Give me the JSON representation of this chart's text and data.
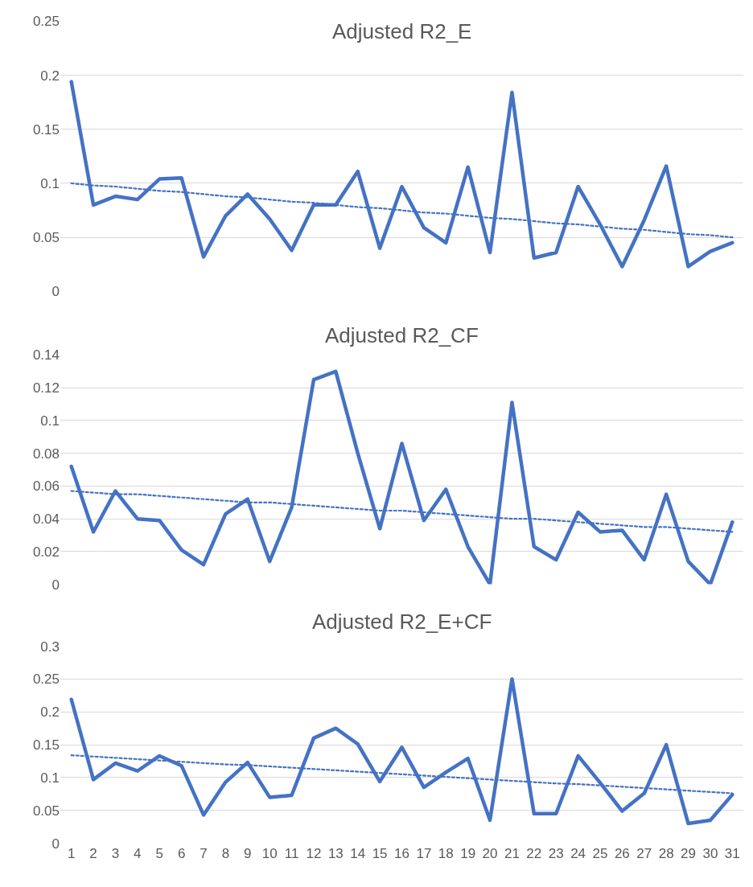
{
  "chart_data": [
    {
      "type": "line",
      "title": "Adjusted R2_E",
      "x": [
        1,
        2,
        3,
        4,
        5,
        6,
        7,
        8,
        9,
        10,
        11,
        12,
        13,
        14,
        15,
        16,
        17,
        18,
        19,
        20,
        21,
        22,
        23,
        24,
        25,
        26,
        27,
        28,
        29,
        30,
        31
      ],
      "xlim": [
        0.5,
        31.5
      ],
      "xticks": [
        1,
        2,
        3,
        4,
        5,
        6,
        7,
        8,
        9,
        10,
        11,
        12,
        13,
        14,
        15,
        16,
        17,
        18,
        19,
        20,
        21,
        22,
        23,
        24,
        25,
        26,
        27,
        28,
        29,
        30,
        31
      ],
      "tick_labels": "y",
      "ylim": [
        0,
        0.25
      ],
      "yticks": [
        0,
        0.05,
        0.1,
        0.15,
        0.2,
        0.25
      ],
      "grid": "y",
      "series": [
        {
          "color": "#4472c4",
          "line_style": "solid",
          "values": [
            0.194,
            0.08,
            0.088,
            0.085,
            0.104,
            0.105,
            0.032,
            0.07,
            0.09,
            0.067,
            0.038,
            0.08,
            0.08,
            0.111,
            0.04,
            0.097,
            0.059,
            0.045,
            0.115,
            0.036,
            0.184,
            0.031,
            0.036,
            0.097,
            0.062,
            0.023,
            0.066,
            0.116,
            0.023,
            0.037,
            0.045
          ]
        },
        {
          "type": "line",
          "color": "#4472c4",
          "line_style": "dotted",
          "values": [
            0.1,
            0.098,
            0.097,
            0.095,
            0.093,
            0.092,
            0.09,
            0.088,
            0.087,
            0.085,
            0.083,
            0.082,
            0.08,
            0.078,
            0.077,
            0.075,
            0.073,
            0.072,
            0.07,
            0.068,
            0.067,
            0.065,
            0.063,
            0.062,
            0.06,
            0.058,
            0.057,
            0.055,
            0.053,
            0.052,
            0.05
          ]
        }
      ]
    },
    {
      "type": "line",
      "title": "Adjusted R2_CF",
      "x": [
        1,
        2,
        3,
        4,
        5,
        6,
        7,
        8,
        9,
        10,
        11,
        12,
        13,
        14,
        15,
        16,
        17,
        18,
        19,
        20,
        21,
        22,
        23,
        24,
        25,
        26,
        27,
        28,
        29,
        30,
        31
      ],
      "xlim": [
        0.5,
        31.5
      ],
      "xticks": [
        1,
        2,
        3,
        4,
        5,
        6,
        7,
        8,
        9,
        10,
        11,
        12,
        13,
        14,
        15,
        16,
        17,
        18,
        19,
        20,
        21,
        22,
        23,
        24,
        25,
        26,
        27,
        28,
        29,
        30,
        31
      ],
      "tick_labels": "y",
      "ylim": [
        0,
        0.14
      ],
      "yticks": [
        0,
        0.02,
        0.04,
        0.06,
        0.08,
        0.1,
        0.12,
        0.14
      ],
      "grid": "y",
      "series": [
        {
          "color": "#4472c4",
          "line_style": "solid",
          "values": [
            0.072,
            0.032,
            0.057,
            0.04,
            0.039,
            0.021,
            0.012,
            0.043,
            0.052,
            0.014,
            0.047,
            0.125,
            0.13,
            0.08,
            0.034,
            0.086,
            0.039,
            0.058,
            0.023,
            0.0,
            0.111,
            0.023,
            0.015,
            0.044,
            0.032,
            0.033,
            0.015,
            0.055,
            0.014,
            0.0,
            0.038
          ]
        },
        {
          "type": "line",
          "color": "#4472c4",
          "line_style": "dotted",
          "values": [
            0.057,
            0.056,
            0.055,
            0.055,
            0.054,
            0.053,
            0.052,
            0.051,
            0.05,
            0.05,
            0.049,
            0.048,
            0.047,
            0.046,
            0.045,
            0.045,
            0.044,
            0.043,
            0.042,
            0.041,
            0.04,
            0.04,
            0.039,
            0.038,
            0.037,
            0.036,
            0.035,
            0.035,
            0.034,
            0.033,
            0.032
          ]
        }
      ]
    },
    {
      "type": "line",
      "title": "Adjusted R2_E+CF",
      "x": [
        1,
        2,
        3,
        4,
        5,
        6,
        7,
        8,
        9,
        10,
        11,
        12,
        13,
        14,
        15,
        16,
        17,
        18,
        19,
        20,
        21,
        22,
        23,
        24,
        25,
        26,
        27,
        28,
        29,
        30,
        31
      ],
      "xlim": [
        0.5,
        31.5
      ],
      "xticks": [
        1,
        2,
        3,
        4,
        5,
        6,
        7,
        8,
        9,
        10,
        11,
        12,
        13,
        14,
        15,
        16,
        17,
        18,
        19,
        20,
        21,
        22,
        23,
        24,
        25,
        26,
        27,
        28,
        29,
        30,
        31
      ],
      "ylim": [
        0,
        0.3
      ],
      "yticks": [
        0,
        0.05,
        0.1,
        0.15,
        0.2,
        0.25,
        0.3
      ],
      "grid": "y",
      "series": [
        {
          "color": "#4472c4",
          "line_style": "solid",
          "values": [
            0.219,
            0.097,
            0.122,
            0.11,
            0.133,
            0.118,
            0.043,
            0.093,
            0.123,
            0.07,
            0.073,
            0.16,
            0.175,
            0.151,
            0.094,
            0.146,
            0.085,
            0.108,
            0.129,
            0.035,
            0.25,
            0.045,
            0.045,
            0.133,
            0.092,
            0.049,
            0.076,
            0.15,
            0.03,
            0.035,
            0.074
          ]
        },
        {
          "type": "line",
          "color": "#4472c4",
          "line_style": "dotted",
          "values": [
            0.134,
            0.132,
            0.13,
            0.128,
            0.126,
            0.124,
            0.122,
            0.12,
            0.119,
            0.117,
            0.115,
            0.113,
            0.111,
            0.109,
            0.107,
            0.105,
            0.103,
            0.101,
            0.099,
            0.097,
            0.095,
            0.093,
            0.091,
            0.09,
            0.088,
            0.086,
            0.084,
            0.082,
            0.08,
            0.078,
            0.076
          ]
        }
      ]
    }
  ]
}
